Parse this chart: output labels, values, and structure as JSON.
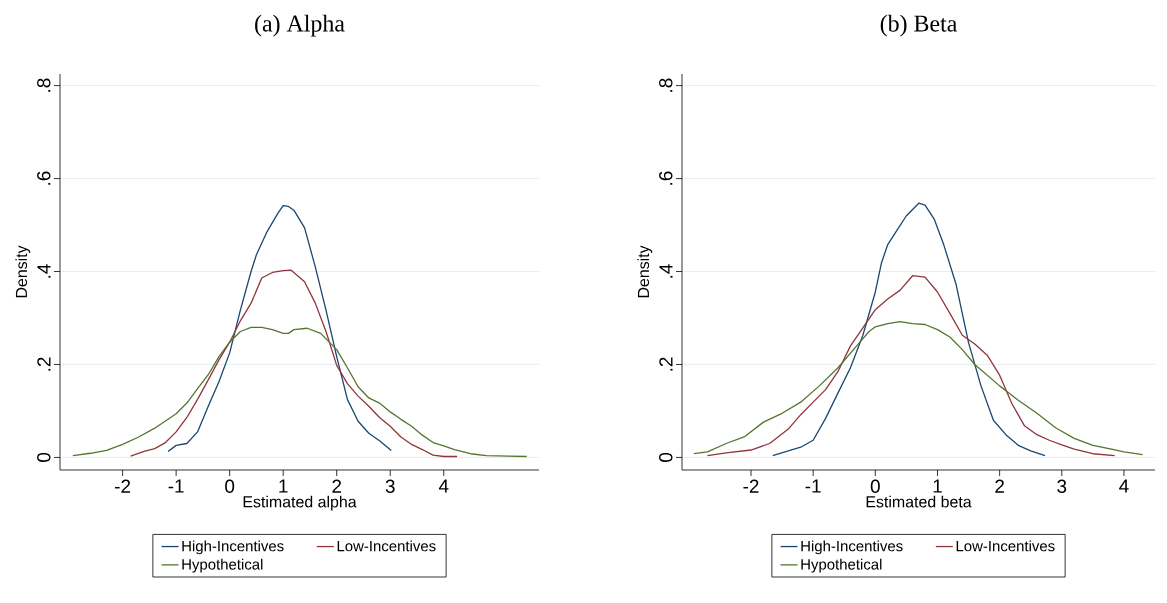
{
  "chart_data": [
    {
      "type": "line",
      "title": "(a) Alpha",
      "xlabel": "Estimated alpha",
      "ylabel": "Density",
      "xlim": [
        -3.17,
        5.78
      ],
      "ylim": [
        -0.027,
        0.825
      ],
      "xticks": [
        -2,
        -1,
        0,
        1,
        2,
        3,
        4
      ],
      "yticks": [
        0,
        {
          "value": 0.2,
          "label": ".2"
        },
        {
          "value": 0.4,
          "label": ".4"
        },
        {
          "value": 0.6,
          "label": ".6"
        },
        {
          "value": 0.8,
          "label": ".8"
        }
      ],
      "grid": "y",
      "legend": "bottom",
      "series": [
        {
          "name": "High-Incentives",
          "color": "#1a476f",
          "x": [
            -1.15,
            -1.0,
            -0.8,
            -0.6,
            -0.4,
            -0.2,
            0,
            0.2,
            0.4,
            0.5,
            0.7,
            0.9,
            1.0,
            1.1,
            1.2,
            1.4,
            1.6,
            1.8,
            2.0,
            2.2,
            2.4,
            2.6,
            2.8,
            3.02
          ],
          "values": [
            0.013,
            0.026,
            0.03,
            0.055,
            0.11,
            0.163,
            0.225,
            0.317,
            0.4,
            0.436,
            0.486,
            0.525,
            0.542,
            0.54,
            0.532,
            0.494,
            0.41,
            0.317,
            0.217,
            0.125,
            0.078,
            0.052,
            0.036,
            0.015
          ]
        },
        {
          "name": "Low-Incentives",
          "color": "#90353b",
          "x": [
            -1.85,
            -1.6,
            -1.4,
            -1.2,
            -1.0,
            -0.8,
            -0.6,
            -0.4,
            -0.2,
            0,
            0.2,
            0.4,
            0.6,
            0.8,
            1.0,
            1.15,
            1.4,
            1.6,
            1.8,
            2.0,
            2.2,
            2.4,
            2.6,
            2.8,
            3.0,
            3.2,
            3.4,
            3.6,
            3.8,
            4.0,
            4.25
          ],
          "values": [
            0.003,
            0.013,
            0.019,
            0.032,
            0.055,
            0.086,
            0.125,
            0.167,
            0.21,
            0.248,
            0.294,
            0.332,
            0.386,
            0.398,
            0.402,
            0.403,
            0.378,
            0.332,
            0.271,
            0.198,
            0.159,
            0.132,
            0.11,
            0.086,
            0.067,
            0.044,
            0.028,
            0.017,
            0.005,
            0.002,
            0.002
          ]
        },
        {
          "name": "Hypothetical",
          "color": "#55752f",
          "x": [
            -2.93,
            -2.6,
            -2.3,
            -2.0,
            -1.7,
            -1.4,
            -1.0,
            -0.8,
            -0.6,
            -0.4,
            -0.2,
            0,
            0.2,
            0.4,
            0.6,
            0.8,
            1.0,
            1.1,
            1.2,
            1.45,
            1.7,
            2.0,
            2.2,
            2.4,
            2.6,
            2.8,
            3.0,
            3.2,
            3.4,
            3.6,
            3.8,
            4.0,
            4.2,
            4.5,
            4.8,
            5.2,
            5.55
          ],
          "values": [
            0.004,
            0.009,
            0.015,
            0.028,
            0.044,
            0.063,
            0.094,
            0.117,
            0.148,
            0.178,
            0.217,
            0.248,
            0.271,
            0.28,
            0.28,
            0.275,
            0.267,
            0.267,
            0.275,
            0.278,
            0.267,
            0.232,
            0.193,
            0.152,
            0.128,
            0.117,
            0.098,
            0.082,
            0.067,
            0.048,
            0.032,
            0.025,
            0.017,
            0.008,
            0.004,
            0.003,
            0.002
          ]
        }
      ]
    },
    {
      "type": "line",
      "title": "(b) Beta",
      "xlabel": "Estimated beta",
      "ylabel": "Density",
      "xlim": [
        -3.11,
        4.5
      ],
      "ylim": [
        -0.027,
        0.825
      ],
      "xticks": [
        -2,
        -1,
        0,
        1,
        2,
        3,
        4
      ],
      "yticks": [
        0,
        {
          "value": 0.2,
          "label": ".2"
        },
        {
          "value": 0.4,
          "label": ".4"
        },
        {
          "value": 0.6,
          "label": ".6"
        },
        {
          "value": 0.8,
          "label": ".8"
        }
      ],
      "grid": "y",
      "legend": "bottom",
      "series": [
        {
          "name": "High-Incentives",
          "color": "#1a476f",
          "x": [
            -1.65,
            -1.4,
            -1.2,
            -1.0,
            -0.8,
            -0.6,
            -0.4,
            -0.2,
            0,
            0.1,
            0.2,
            0.35,
            0.5,
            0.7,
            0.8,
            0.95,
            1.1,
            1.3,
            1.5,
            1.7,
            1.9,
            2.1,
            2.3,
            2.5,
            2.73
          ],
          "values": [
            0.004,
            0.014,
            0.022,
            0.037,
            0.084,
            0.139,
            0.193,
            0.263,
            0.356,
            0.419,
            0.458,
            0.489,
            0.52,
            0.547,
            0.543,
            0.512,
            0.458,
            0.372,
            0.247,
            0.154,
            0.08,
            0.049,
            0.026,
            0.014,
            0.004
          ]
        },
        {
          "name": "Low-Incentives",
          "color": "#90353b",
          "x": [
            -2.7,
            -2.4,
            -2.0,
            -1.7,
            -1.4,
            -1.2,
            -1.0,
            -0.8,
            -0.6,
            -0.4,
            -0.2,
            0,
            0.2,
            0.4,
            0.6,
            0.8,
            1.0,
            1.2,
            1.4,
            1.6,
            1.8,
            2.0,
            2.2,
            2.4,
            2.6,
            2.8,
            3.0,
            3.2,
            3.5,
            3.85
          ],
          "values": [
            0.004,
            0.01,
            0.016,
            0.03,
            0.061,
            0.092,
            0.119,
            0.146,
            0.185,
            0.24,
            0.279,
            0.318,
            0.341,
            0.36,
            0.391,
            0.388,
            0.356,
            0.31,
            0.263,
            0.244,
            0.22,
            0.177,
            0.115,
            0.068,
            0.049,
            0.037,
            0.027,
            0.018,
            0.008,
            0.004
          ]
        },
        {
          "name": "Hypothetical",
          "color": "#55752f",
          "x": [
            -2.92,
            -2.7,
            -2.4,
            -2.1,
            -1.8,
            -1.5,
            -1.2,
            -0.9,
            -0.6,
            -0.3,
            -0.1,
            0,
            0.2,
            0.4,
            0.6,
            0.8,
            1.0,
            1.2,
            1.4,
            1.6,
            1.8,
            2.0,
            2.3,
            2.6,
            2.9,
            3.2,
            3.5,
            3.8,
            4.0,
            4.3
          ],
          "values": [
            0.008,
            0.012,
            0.03,
            0.045,
            0.076,
            0.095,
            0.119,
            0.154,
            0.193,
            0.24,
            0.271,
            0.281,
            0.288,
            0.292,
            0.288,
            0.286,
            0.275,
            0.259,
            0.232,
            0.2,
            0.177,
            0.154,
            0.123,
            0.095,
            0.064,
            0.041,
            0.026,
            0.018,
            0.012,
            0.006
          ]
        }
      ]
    }
  ]
}
